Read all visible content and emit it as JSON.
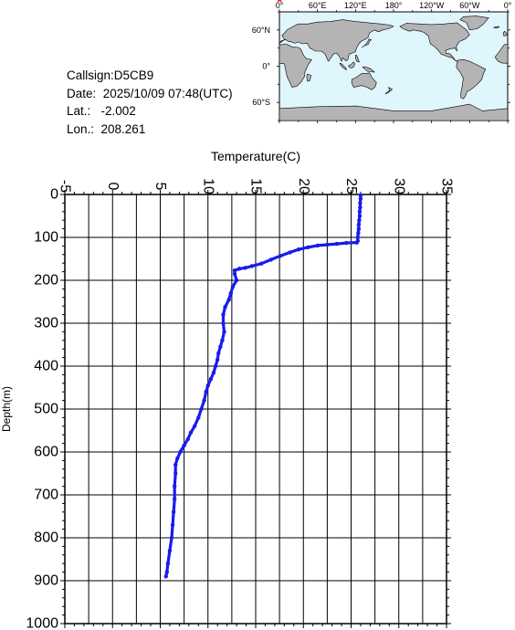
{
  "info": {
    "callsign": "Callsign:D5CB9",
    "date": "Date:  2025/10/09 07:48(UTC)",
    "lat": "Lat.:   -2.002",
    "lon": "Lon.:  208.261"
  },
  "map": {
    "lon_labels": [
      "0°",
      "60°E",
      "120°E",
      "180°",
      "120°W",
      "60°W",
      "0°"
    ],
    "lat_labels": [
      "60°N",
      "0°",
      "60°S"
    ],
    "ocean_color": "#dff6fc",
    "land_color": "#b4b4b4",
    "marker_color": "#e0201a",
    "marker_icon": "star-icon"
  },
  "chart_data": {
    "type": "line",
    "xlabel": "Temperature(C)",
    "ylabel": "Depth(m)",
    "xlim": [
      -5,
      35
    ],
    "ylim": [
      1000,
      0
    ],
    "x_ticks": [
      "-5",
      "0",
      "5",
      "10",
      "15",
      "20",
      "25",
      "30",
      "35"
    ],
    "y_ticks": [
      "0",
      "100",
      "200",
      "300",
      "400",
      "500",
      "600",
      "700",
      "800",
      "900",
      "1000"
    ],
    "grid": true,
    "line_color": "#1a1aee",
    "series": [
      {
        "points": [
          [
            26.0,
            2
          ],
          [
            26.0,
            10
          ],
          [
            25.95,
            20
          ],
          [
            25.95,
            30
          ],
          [
            25.9,
            40
          ],
          [
            25.9,
            50
          ],
          [
            25.85,
            60
          ],
          [
            25.8,
            70
          ],
          [
            25.8,
            80
          ],
          [
            25.75,
            90
          ],
          [
            25.7,
            100
          ],
          [
            25.7,
            108
          ],
          [
            25.6,
            112
          ],
          [
            24.5,
            113
          ],
          [
            23.5,
            115
          ],
          [
            22.5,
            117
          ],
          [
            21.5,
            119
          ],
          [
            20.5,
            123
          ],
          [
            19.5,
            128
          ],
          [
            18.6,
            135
          ],
          [
            17.6,
            143
          ],
          [
            16.6,
            152
          ],
          [
            15.6,
            161
          ],
          [
            14.6,
            167
          ],
          [
            13.9,
            171
          ],
          [
            13.3,
            173
          ],
          [
            12.8,
            177
          ],
          [
            12.8,
            185
          ],
          [
            13.0,
            200
          ],
          [
            12.6,
            215
          ],
          [
            12.4,
            230
          ],
          [
            12.2,
            245
          ],
          [
            11.8,
            262
          ],
          [
            11.6,
            280
          ],
          [
            11.6,
            300
          ],
          [
            11.7,
            320
          ],
          [
            11.5,
            340
          ],
          [
            11.3,
            355
          ],
          [
            11.1,
            370
          ],
          [
            11.0,
            385
          ],
          [
            10.8,
            400
          ],
          [
            10.6,
            415
          ],
          [
            10.3,
            430
          ],
          [
            10.0,
            445
          ],
          [
            9.8,
            460
          ],
          [
            9.6,
            480
          ],
          [
            9.3,
            500
          ],
          [
            9.0,
            520
          ],
          [
            8.6,
            540
          ],
          [
            8.2,
            555
          ],
          [
            7.9,
            570
          ],
          [
            7.5,
            585
          ],
          [
            7.1,
            600
          ],
          [
            6.8,
            615
          ],
          [
            6.6,
            630
          ],
          [
            6.6,
            650
          ],
          [
            6.5,
            680
          ],
          [
            6.5,
            710
          ],
          [
            6.4,
            740
          ],
          [
            6.3,
            770
          ],
          [
            6.2,
            800
          ],
          [
            6.0,
            830
          ],
          [
            5.8,
            860
          ],
          [
            5.7,
            880
          ],
          [
            5.6,
            890
          ]
        ]
      }
    ]
  }
}
